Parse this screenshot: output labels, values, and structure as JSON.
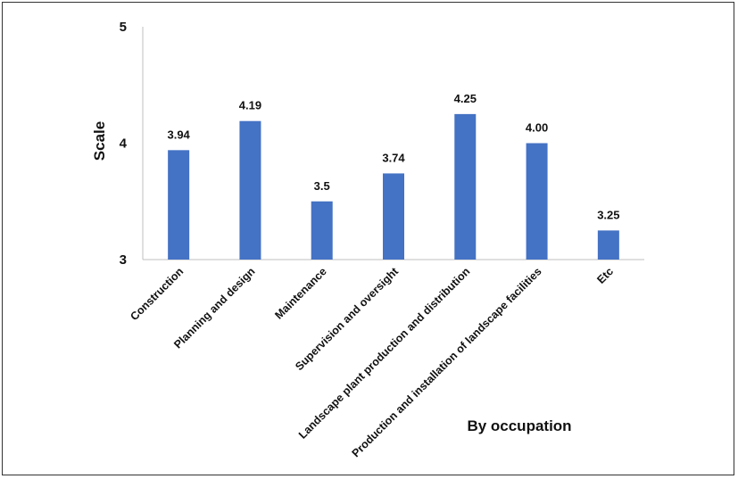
{
  "chart_data": {
    "type": "bar",
    "title": "",
    "xlabel": "By occupation",
    "ylabel": "Scale",
    "ylim": [
      3,
      5
    ],
    "yticks": [
      "3",
      "4",
      "5"
    ],
    "grid": false,
    "legend": "none",
    "bar_color": "#4472C4",
    "categories": [
      "Construction",
      "Planning and design",
      "Maintenance",
      "Supervision and oversight",
      "Landscape plant production and distribution",
      "Production and installation of landscape facilities",
      "Etc"
    ],
    "values": [
      3.94,
      4.19,
      3.5,
      3.74,
      4.25,
      4.0,
      3.25
    ],
    "data_labels": [
      "3.94",
      "4.19",
      "3.5",
      "3.74",
      "4.25",
      "4.00",
      "3.25"
    ]
  }
}
